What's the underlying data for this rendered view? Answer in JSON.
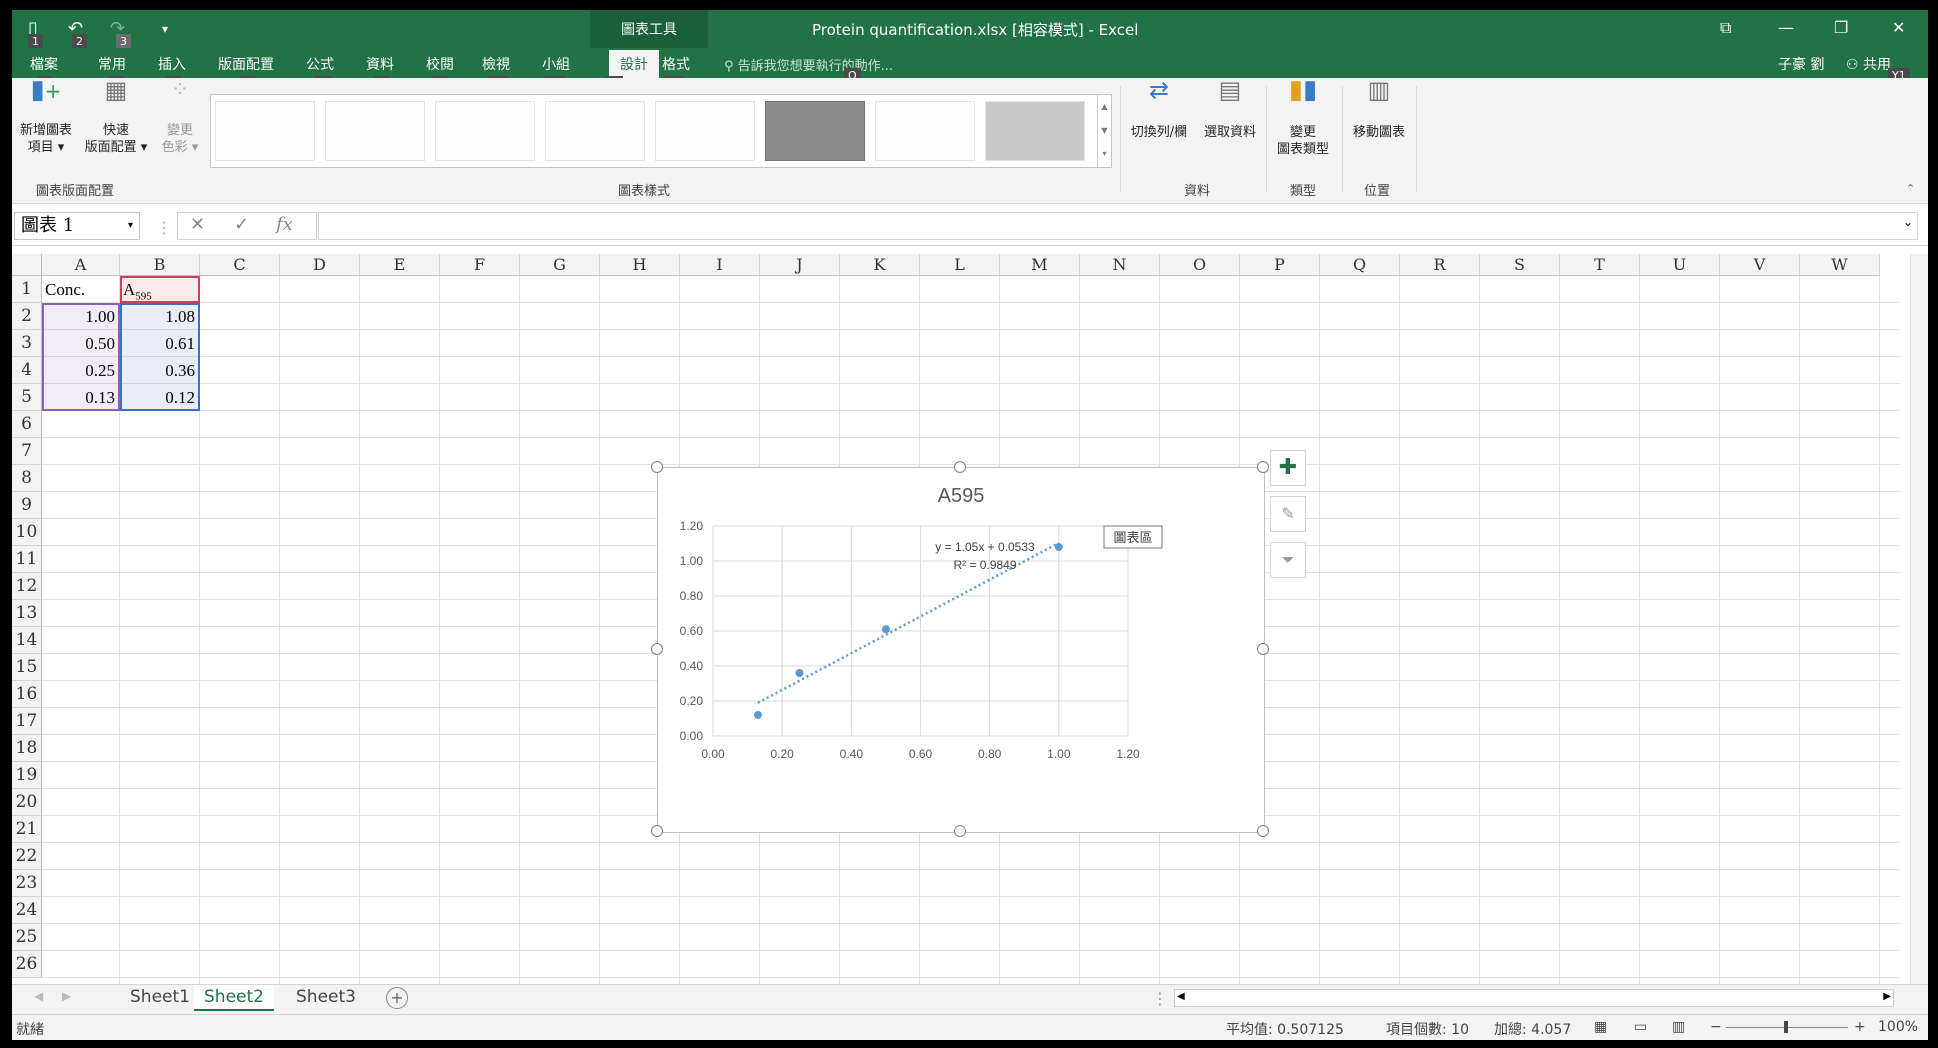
{
  "titlebar": {
    "doc_title": "Protein quantification.xlsx  [相容模式] - Excel",
    "tool_tab": "圖表工具",
    "qa_keytips": [
      "1",
      "2",
      "3"
    ]
  },
  "tabs": [
    {
      "label": "檔案",
      "key": "F"
    },
    {
      "label": "常用",
      "key": "H"
    },
    {
      "label": "插入",
      "key": "N"
    },
    {
      "label": "版面配置",
      "key": "P"
    },
    {
      "label": "公式",
      "key": "M"
    },
    {
      "label": "資料",
      "key": "A"
    },
    {
      "label": "校閱",
      "key": "R"
    },
    {
      "label": "檢視",
      "key": "W"
    },
    {
      "label": "小組",
      "key": "Y2"
    },
    {
      "label": "設計",
      "key": "JC"
    },
    {
      "label": "格式",
      "key": "JA"
    }
  ],
  "tellme": {
    "text": "告訴我您想要執行的動作...",
    "key": "Q"
  },
  "user": {
    "name": "子豪 劉",
    "share": "共用",
    "share_key": "Y1"
  },
  "ribbon": {
    "add_element": {
      "line1": "新增圖表",
      "line2": "項目"
    },
    "quick_layout": {
      "line1": "快速",
      "line2": "版面配置"
    },
    "change_colors": {
      "line1": "變更",
      "line2": "色彩"
    },
    "switch_row_col": "切換列/欄",
    "select_data": "選取資料",
    "change_type": {
      "line1": "變更",
      "line2": "圖表類型"
    },
    "move_chart": "移動圖表",
    "groups": {
      "layouts": "圖表版面配置",
      "styles": "圖表樣式",
      "data": "資料",
      "type": "類型",
      "location": "位置"
    }
  },
  "formula_bar": {
    "name_box": "圖表 1",
    "fx": "fx",
    "value": ""
  },
  "columns": [
    "A",
    "B",
    "C",
    "D",
    "E",
    "F",
    "G",
    "H",
    "I",
    "J",
    "K",
    "L",
    "M",
    "N",
    "O",
    "P",
    "Q",
    "R",
    "S",
    "T",
    "U",
    "V",
    "W"
  ],
  "rows": [
    "1",
    "2",
    "3",
    "4",
    "5",
    "6",
    "7",
    "8",
    "9",
    "10",
    "11",
    "12",
    "13",
    "14",
    "15",
    "16",
    "17",
    "18",
    "19",
    "20",
    "21",
    "22",
    "23",
    "24",
    "25",
    "26"
  ],
  "cells": {
    "A1": "Conc.",
    "B1_main": "A",
    "B1_sub": "595",
    "A": [
      "1.00",
      "0.50",
      "0.25",
      "0.13"
    ],
    "B": [
      "1.08",
      "0.61",
      "0.36",
      "0.12"
    ]
  },
  "chart_data": {
    "type": "scatter",
    "title": "A595",
    "series": [
      {
        "x": [
          1.0,
          0.5,
          0.25,
          0.13
        ],
        "y": [
          1.08,
          0.61,
          0.36,
          0.12
        ]
      }
    ],
    "trendline": {
      "slope": 1.05,
      "intercept": 0.0533,
      "equation": "y = 1.05x + 0.0533",
      "r2": "R² = 0.9849"
    },
    "xlim": [
      0.0,
      1.2
    ],
    "ylim": [
      0.0,
      1.2
    ],
    "xticks": [
      "0.00",
      "0.20",
      "0.40",
      "0.60",
      "0.80",
      "1.00",
      "1.20"
    ],
    "yticks": [
      "0.00",
      "0.20",
      "0.40",
      "0.60",
      "0.80",
      "1.00",
      "1.20"
    ],
    "tooltip": "圖表區",
    "grid": true,
    "colors": {
      "series": "#5b9bd5",
      "grid": "#d9d9d9"
    }
  },
  "sheets": [
    "Sheet1",
    "Sheet2",
    "Sheet3"
  ],
  "active_sheet": "Sheet2",
  "status": {
    "ready": "就緒",
    "average": "平均值: 0.507125",
    "count": "項目個數: 10",
    "sum": "加總: 4.057",
    "zoom": "100%"
  },
  "colors": {
    "accent": "#217346"
  }
}
